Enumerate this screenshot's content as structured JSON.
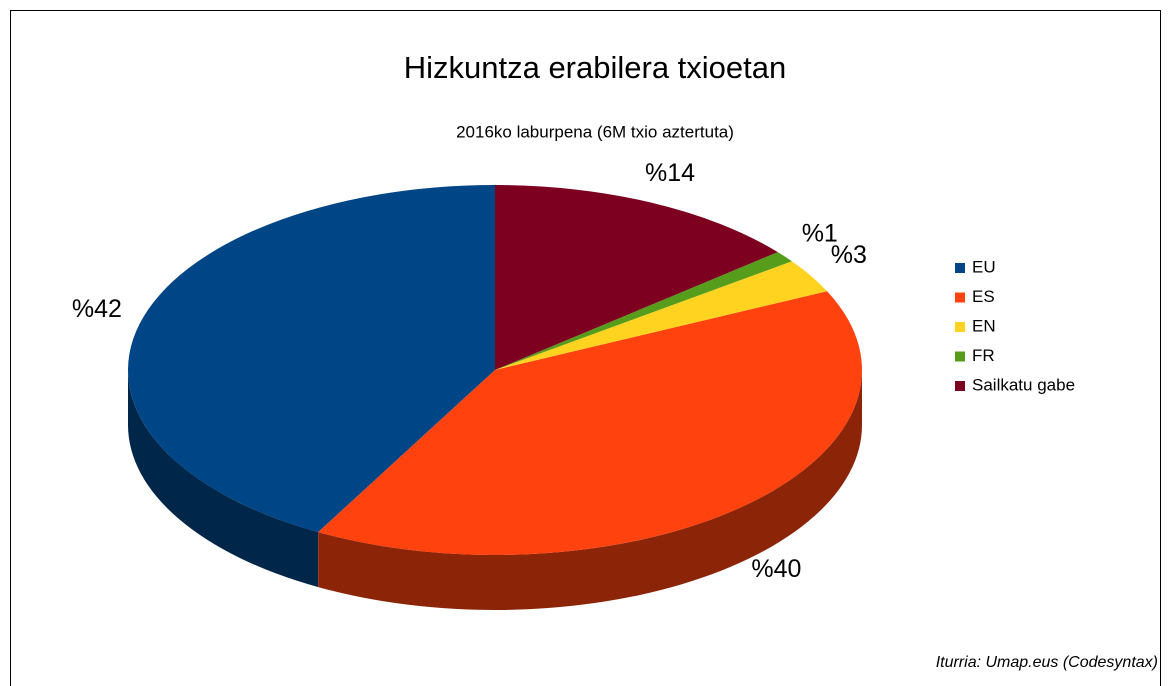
{
  "chart_data": {
    "type": "pie3d",
    "title": "Hizkuntza erabilera txioetan",
    "subtitle": "2016ko laburpena (6M txio aztertuta)",
    "categories": [
      "EU",
      "ES",
      "EN",
      "FR",
      "Sailkatu gabe"
    ],
    "values": [
      42,
      40,
      3,
      1,
      14
    ],
    "value_labels": [
      "%42",
      "%40",
      "%3",
      "%1",
      "%14"
    ],
    "colors": [
      "#004586",
      "#ff420e",
      "#ffd320",
      "#579d1c",
      "#7e0021"
    ],
    "legend": "right",
    "annotation": "Iturria: Umap.eus (Codesyntax)"
  }
}
